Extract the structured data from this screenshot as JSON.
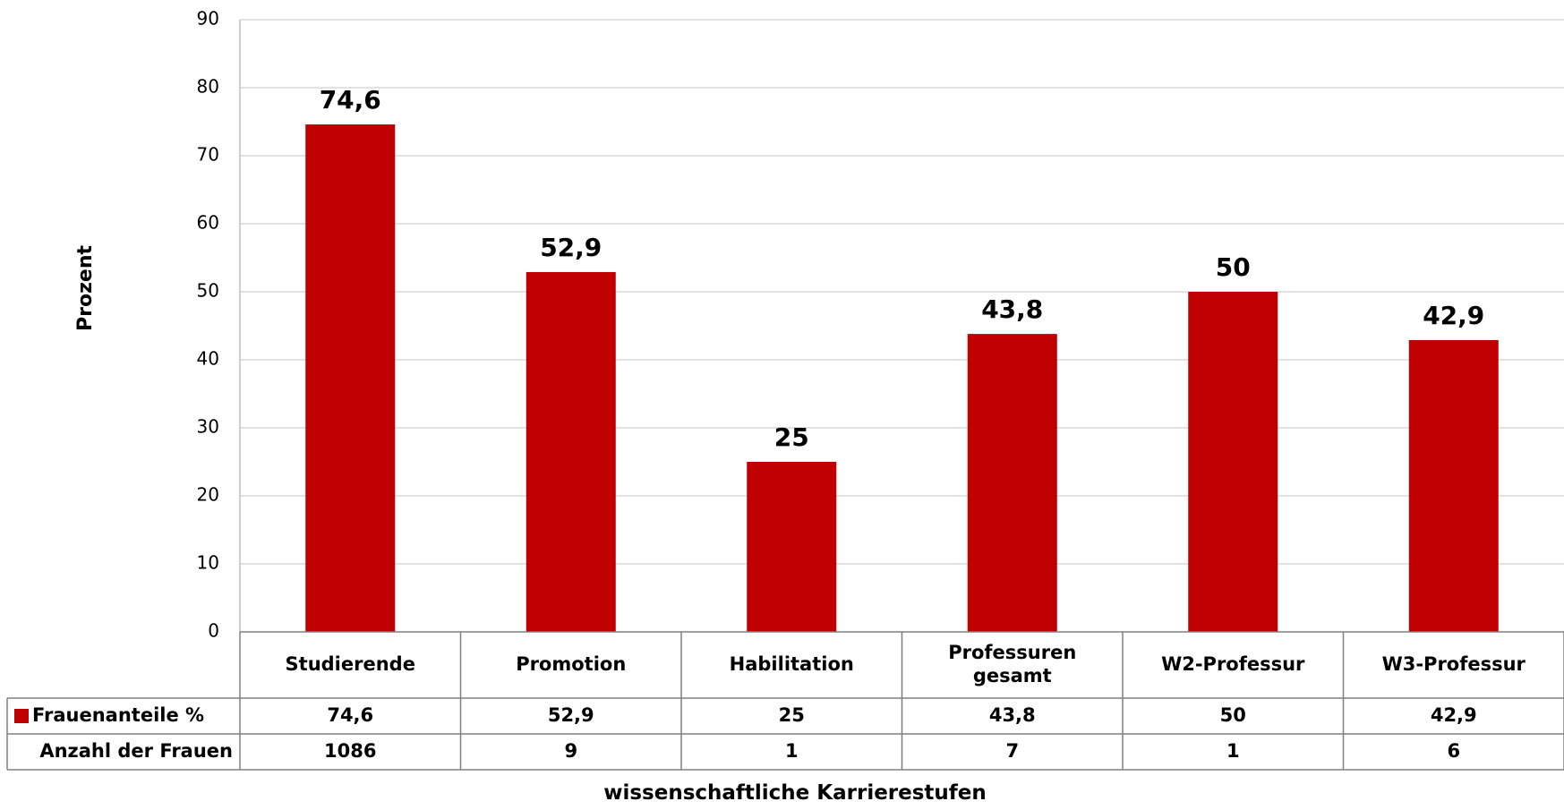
{
  "chart_data": {
    "type": "bar",
    "title": "",
    "xlabel": "wissenschaftliche Karrierestufen",
    "ylabel": "Prozent",
    "ylim": [
      0,
      90
    ],
    "yticks": [
      0,
      10,
      20,
      30,
      40,
      50,
      60,
      70,
      80,
      90
    ],
    "grid": true,
    "categories": [
      [
        "Studierende"
      ],
      [
        "Promotion"
      ],
      [
        "Habilitation"
      ],
      [
        "Professuren",
        "gesamt"
      ],
      [
        "W2-Professur"
      ],
      [
        "W3-Professur"
      ]
    ],
    "series": [
      {
        "name": "Frauenanteile %",
        "color": "#C00000",
        "values": [
          74.6,
          52.9,
          25,
          43.8,
          50,
          42.9
        ],
        "display": [
          "74,6",
          "52,9",
          "25",
          "43,8",
          "50",
          "42,9"
        ]
      }
    ],
    "table": {
      "rows": [
        {
          "label": "Frauenanteile %",
          "legend_color": "#C00000",
          "cells": [
            "74,6",
            "52,9",
            "25",
            "43,8",
            "50",
            "42,9"
          ]
        },
        {
          "label": "Anzahl der Frauen",
          "cells": [
            "1086",
            "9",
            "1",
            "7",
            "1",
            "6"
          ]
        }
      ]
    }
  }
}
